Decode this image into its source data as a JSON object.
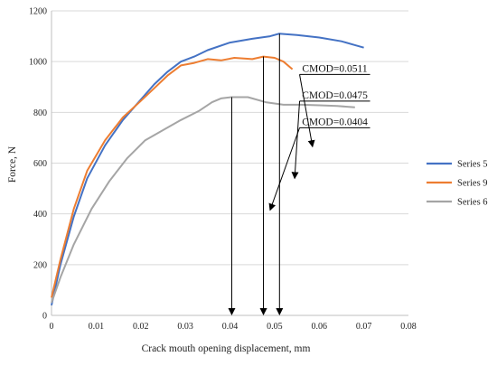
{
  "chart_data": {
    "type": "line",
    "xlabel": "Crack mouth opening displacement, mm",
    "ylabel": "Force, N",
    "xlim": [
      0,
      0.08
    ],
    "ylim": [
      0,
      1200
    ],
    "x_ticks": [
      "0",
      "0.01",
      "0.02",
      "0.03",
      "0.04",
      "0.05",
      "0.06",
      "0.07",
      "0.08"
    ],
    "y_ticks": [
      "0",
      "200",
      "400",
      "600",
      "800",
      "1000",
      "1200"
    ],
    "grid": "horizontal",
    "legend_position": "right",
    "series": [
      {
        "name": "Series 5",
        "color": "#4472C4",
        "points": [
          [
            0,
            40
          ],
          [
            0.002,
            200
          ],
          [
            0.005,
            390
          ],
          [
            0.008,
            540
          ],
          [
            0.012,
            670
          ],
          [
            0.016,
            770
          ],
          [
            0.02,
            850
          ],
          [
            0.023,
            910
          ],
          [
            0.026,
            960
          ],
          [
            0.029,
            1000
          ],
          [
            0.032,
            1020
          ],
          [
            0.035,
            1045
          ],
          [
            0.04,
            1075
          ],
          [
            0.045,
            1090
          ],
          [
            0.049,
            1100
          ],
          [
            0.051,
            1110
          ],
          [
            0.055,
            1105
          ],
          [
            0.06,
            1095
          ],
          [
            0.065,
            1080
          ],
          [
            0.068,
            1065
          ],
          [
            0.07,
            1055
          ]
        ]
      },
      {
        "name": "Series 9",
        "color": "#ED7D31",
        "points": [
          [
            0,
            70
          ],
          [
            0.002,
            220
          ],
          [
            0.005,
            420
          ],
          [
            0.008,
            570
          ],
          [
            0.012,
            690
          ],
          [
            0.016,
            780
          ],
          [
            0.02,
            845
          ],
          [
            0.023,
            895
          ],
          [
            0.026,
            945
          ],
          [
            0.029,
            985
          ],
          [
            0.032,
            995
          ],
          [
            0.035,
            1010
          ],
          [
            0.038,
            1005
          ],
          [
            0.041,
            1015
          ],
          [
            0.045,
            1010
          ],
          [
            0.0475,
            1020
          ],
          [
            0.05,
            1015
          ],
          [
            0.052,
            1000
          ],
          [
            0.054,
            970
          ]
        ]
      },
      {
        "name": "Series 6",
        "color": "#A5A5A5",
        "points": [
          [
            0,
            50
          ],
          [
            0.002,
            150
          ],
          [
            0.005,
            280
          ],
          [
            0.009,
            420
          ],
          [
            0.013,
            530
          ],
          [
            0.017,
            620
          ],
          [
            0.021,
            690
          ],
          [
            0.025,
            730
          ],
          [
            0.029,
            770
          ],
          [
            0.033,
            805
          ],
          [
            0.036,
            840
          ],
          [
            0.038,
            855
          ],
          [
            0.0404,
            860
          ],
          [
            0.044,
            860
          ],
          [
            0.048,
            840
          ],
          [
            0.052,
            830
          ],
          [
            0.056,
            830
          ],
          [
            0.06,
            828
          ],
          [
            0.064,
            825
          ],
          [
            0.068,
            820
          ]
        ]
      }
    ],
    "annotations": [
      {
        "text": "CMOD=0.0511",
        "x": 0.0511,
        "label_at": [
          0.0635,
          960
        ],
        "arrow_to": [
          0.0585,
          665
        ]
      },
      {
        "text": "CMOD=0.0475",
        "x": 0.0475,
        "label_at": [
          0.0635,
          855
        ],
        "arrow_to": [
          0.0545,
          540
        ]
      },
      {
        "text": "CMOD=0.0404",
        "x": 0.0404,
        "label_at": [
          0.0635,
          750
        ],
        "arrow_to": [
          0.049,
          415
        ]
      }
    ]
  }
}
